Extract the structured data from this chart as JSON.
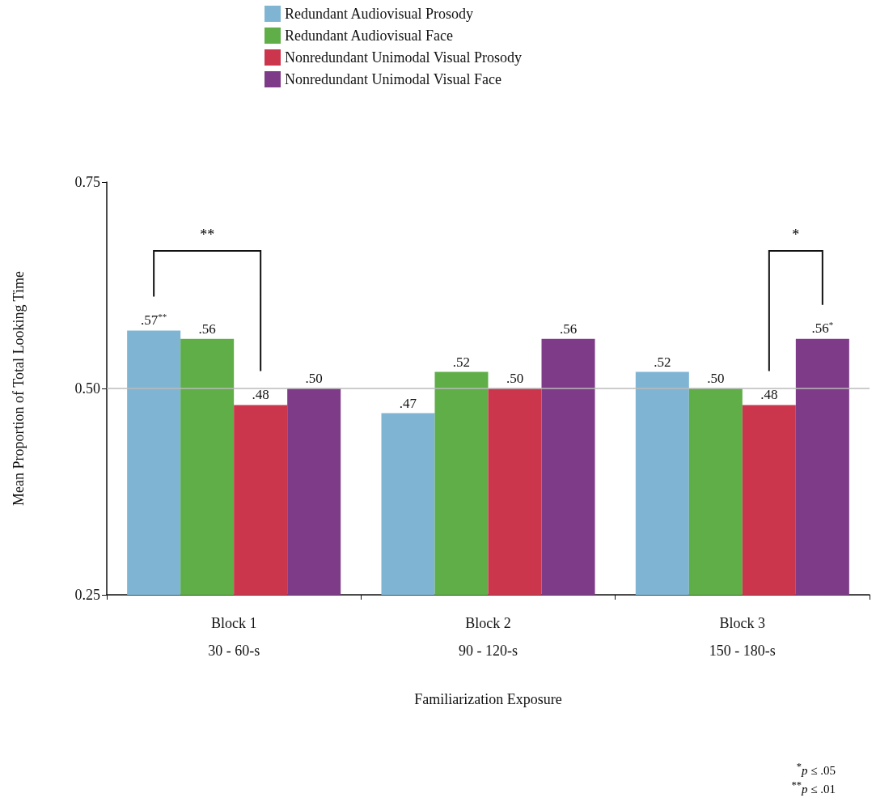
{
  "chart_data": {
    "type": "bar",
    "xlabel": "Familiarization Exposure",
    "ylabel": "Mean Proportion of Total Looking Time",
    "categories": [
      "Block 1\n30 - 60-s",
      "Block 2\n90 - 120-s",
      "Block 3\n150 - 180-s"
    ],
    "series": [
      {
        "name": "Redundant Audiovisual Prosody",
        "color": "#7fb5d3",
        "values": [
          0.57,
          0.47,
          0.52
        ],
        "value_labels": [
          ".57$^{**}$",
          ".47",
          ".52"
        ]
      },
      {
        "name": "Redundant Audiovisual Face",
        "color": "#5fae48",
        "values": [
          0.56,
          0.52,
          0.5
        ],
        "value_labels": [
          ".56",
          ".52",
          ".50"
        ]
      },
      {
        "name": "Nonredundant Unimodal Visual Prosody",
        "color": "#cc364c",
        "values": [
          0.48,
          0.5,
          0.48
        ],
        "value_labels": [
          ".48",
          ".50",
          ".48"
        ]
      },
      {
        "name": "Nonredundant Unimodal Visual Face",
        "color": "#7e3b87",
        "values": [
          0.5,
          0.56,
          0.56
        ],
        "value_labels": [
          ".50",
          ".56",
          ".56$^{*}$"
        ]
      }
    ],
    "ylim": [
      0.25,
      0.75
    ],
    "yticks": [
      {
        "value": 0.25,
        "label": "0.25"
      },
      {
        "value": 0.5,
        "label": "0.50"
      },
      {
        "value": 0.75,
        "label": "0.75"
      }
    ],
    "ref_lines": [
      {
        "axis": "y",
        "value": 0.5,
        "color": "#bbbbbb"
      }
    ],
    "legend": "top",
    "annotations": [
      "**",
      "*",
      "$^{*}$p ≤ .05",
      "$^{**}$p ≤ .01"
    ]
  }
}
